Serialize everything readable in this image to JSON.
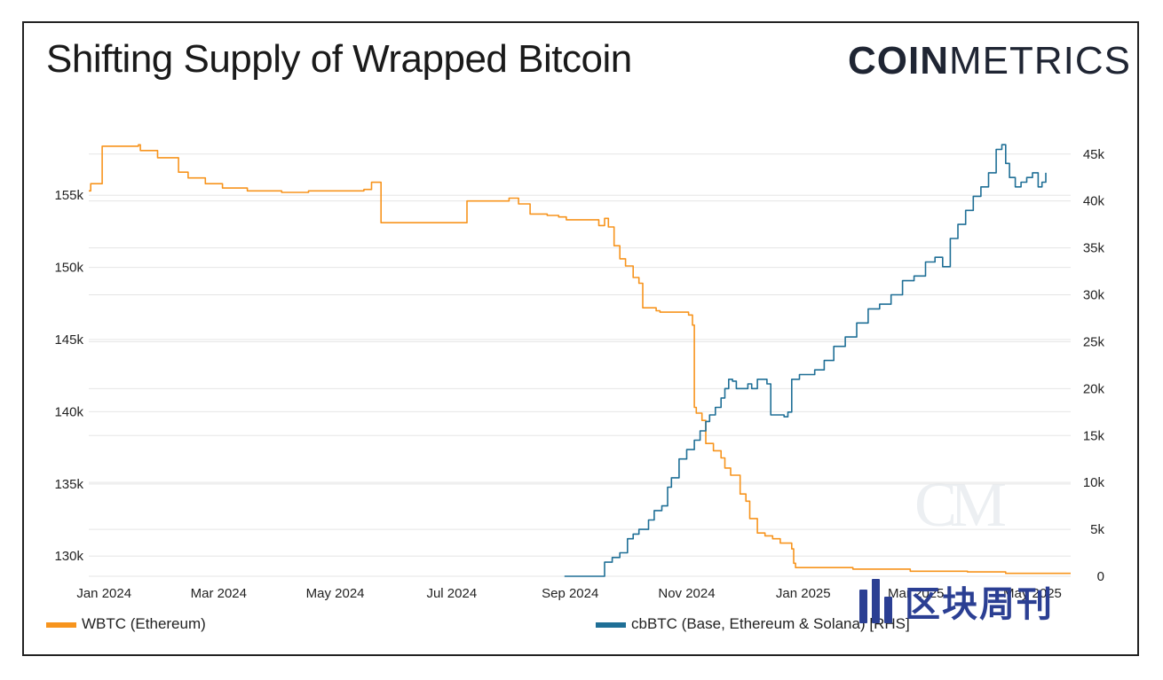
{
  "header": {
    "title": "Shifting Supply of Wrapped Bitcoin",
    "brand_bold": "COIN",
    "brand_light": "METRICS"
  },
  "watermark": {
    "text": "区块周刊",
    "cm_mark": "CM"
  },
  "colors": {
    "wbtc": "#f7941d",
    "cbbtc": "#1f6f96",
    "grid": "#e5e5e5"
  },
  "chart_data": {
    "type": "line",
    "title": "Shifting Supply of Wrapped Bitcoin",
    "x_axis": {
      "type": "time",
      "range": [
        "2023-12-24",
        "2025-05-20"
      ],
      "ticks": [
        "Jan 2024",
        "Mar 2024",
        "May 2024",
        "Jul 2024",
        "Sep 2024",
        "Nov 2024",
        "Jan 2025",
        "Mar 2025",
        "May 2025"
      ],
      "tick_day_offsets": [
        8,
        68,
        129,
        190,
        252,
        313,
        374,
        433,
        494
      ]
    },
    "y_left": {
      "range": [
        128600,
        158700
      ],
      "ticks": [
        130000,
        135000,
        140000,
        145000,
        150000,
        155000
      ],
      "tick_labels": [
        "130k",
        "135k",
        "140k",
        "145k",
        "150k",
        "155k"
      ]
    },
    "y_right": {
      "range": [
        0,
        46300
      ],
      "ticks": [
        0,
        5000,
        10000,
        15000,
        20000,
        25000,
        30000,
        35000,
        40000,
        45000
      ],
      "tick_labels": [
        "0",
        "5k",
        "10k",
        "15k",
        "20k",
        "25k",
        "30k",
        "35k",
        "40k",
        "45k"
      ],
      "label": "RHS"
    },
    "series": [
      {
        "name": "WBTC (Ethereum)",
        "axis": "left",
        "color": "#f7941d",
        "points_day_value": [
          [
            0,
            155300
          ],
          [
            1,
            155800
          ],
          [
            6,
            155800
          ],
          [
            7,
            158400
          ],
          [
            25,
            158400
          ],
          [
            26,
            158500
          ],
          [
            27,
            158100
          ],
          [
            35,
            158100
          ],
          [
            36,
            157600
          ],
          [
            46,
            157600
          ],
          [
            47,
            156600
          ],
          [
            51,
            156600
          ],
          [
            52,
            156200
          ],
          [
            58,
            156200
          ],
          [
            61,
            155800
          ],
          [
            67,
            155800
          ],
          [
            70,
            155500
          ],
          [
            80,
            155500
          ],
          [
            83,
            155300
          ],
          [
            98,
            155300
          ],
          [
            101,
            155200
          ],
          [
            111,
            155200
          ],
          [
            115,
            155300
          ],
          [
            140,
            155300
          ],
          [
            144,
            155400
          ],
          [
            147,
            155400
          ],
          [
            148,
            155900
          ],
          [
            152,
            155900
          ],
          [
            153,
            153100
          ],
          [
            197,
            153100
          ],
          [
            198,
            154600
          ],
          [
            216,
            154600
          ],
          [
            220,
            154800
          ],
          [
            222,
            154800
          ],
          [
            225,
            154400
          ],
          [
            229,
            154400
          ],
          [
            231,
            153700
          ],
          [
            236,
            153700
          ],
          [
            240,
            153600
          ],
          [
            246,
            153500
          ],
          [
            250,
            153300
          ],
          [
            266,
            153300
          ],
          [
            267,
            152900
          ],
          [
            270,
            153400
          ],
          [
            272,
            152800
          ],
          [
            275,
            151500
          ],
          [
            278,
            150600
          ],
          [
            281,
            150100
          ],
          [
            285,
            149300
          ],
          [
            288,
            148900
          ],
          [
            290,
            147200
          ],
          [
            297,
            147000
          ],
          [
            299,
            146900
          ],
          [
            312,
            146900
          ],
          [
            314,
            146700
          ],
          [
            316,
            146000
          ],
          [
            317,
            140300
          ],
          [
            318,
            139900
          ],
          [
            321,
            139400
          ],
          [
            323,
            137800
          ],
          [
            327,
            137300
          ],
          [
            331,
            136800
          ],
          [
            333,
            136100
          ],
          [
            336,
            135600
          ],
          [
            341,
            134300
          ],
          [
            344,
            133800
          ],
          [
            346,
            132600
          ],
          [
            350,
            131600
          ],
          [
            354,
            131400
          ],
          [
            358,
            131200
          ],
          [
            362,
            130900
          ],
          [
            365,
            130900
          ],
          [
            368,
            130500
          ],
          [
            369,
            129500
          ],
          [
            370,
            129200
          ],
          [
            380,
            129200
          ],
          [
            400,
            129100
          ],
          [
            430,
            128950
          ],
          [
            460,
            128900
          ],
          [
            480,
            128800
          ],
          [
            500,
            128800
          ],
          [
            514,
            128800
          ]
        ]
      },
      {
        "name": "cbBTC (Base, Ethereum & Solana) [RHS]",
        "axis": "right",
        "color": "#1f6f96",
        "points_day_value": [
          [
            249,
            0
          ],
          [
            269,
            0
          ],
          [
            270,
            1500
          ],
          [
            274,
            2000
          ],
          [
            278,
            2500
          ],
          [
            282,
            4000
          ],
          [
            285,
            4500
          ],
          [
            288,
            5000
          ],
          [
            293,
            6000
          ],
          [
            296,
            7000
          ],
          [
            300,
            7500
          ],
          [
            303,
            9500
          ],
          [
            305,
            10500
          ],
          [
            309,
            12500
          ],
          [
            313,
            13500
          ],
          [
            317,
            14500
          ],
          [
            320,
            15500
          ],
          [
            323,
            16500
          ],
          [
            325,
            17200
          ],
          [
            328,
            18000
          ],
          [
            331,
            19000
          ],
          [
            333,
            20000
          ],
          [
            335,
            21000
          ],
          [
            337,
            20800
          ],
          [
            339,
            20000
          ],
          [
            341,
            20000
          ],
          [
            345,
            20500
          ],
          [
            347,
            20000
          ],
          [
            350,
            21000
          ],
          [
            355,
            20500
          ],
          [
            357,
            17200
          ],
          [
            362,
            17200
          ],
          [
            364,
            17000
          ],
          [
            366,
            17500
          ],
          [
            368,
            21000
          ],
          [
            372,
            21500
          ],
          [
            376,
            21500
          ],
          [
            380,
            22000
          ],
          [
            385,
            23000
          ],
          [
            390,
            24500
          ],
          [
            396,
            25500
          ],
          [
            402,
            27000
          ],
          [
            408,
            28500
          ],
          [
            414,
            29000
          ],
          [
            420,
            30000
          ],
          [
            426,
            31500
          ],
          [
            432,
            32000
          ],
          [
            438,
            33500
          ],
          [
            443,
            34000
          ],
          [
            447,
            33000
          ],
          [
            451,
            36000
          ],
          [
            455,
            37500
          ],
          [
            459,
            39000
          ],
          [
            463,
            40500
          ],
          [
            467,
            41500
          ],
          [
            471,
            43000
          ],
          [
            475,
            45500
          ],
          [
            478,
            46000
          ],
          [
            480,
            44000
          ],
          [
            482,
            42500
          ],
          [
            485,
            41500
          ],
          [
            488,
            42000
          ],
          [
            491,
            42500
          ],
          [
            494,
            43000
          ],
          [
            497,
            41500
          ],
          [
            499,
            42000
          ],
          [
            501,
            43000
          ]
        ]
      }
    ],
    "legend": [
      "WBTC (Ethereum)",
      "cbBTC (Base, Ethereum & Solana) [RHS]"
    ],
    "legend_position": "bottom",
    "grid": true
  }
}
